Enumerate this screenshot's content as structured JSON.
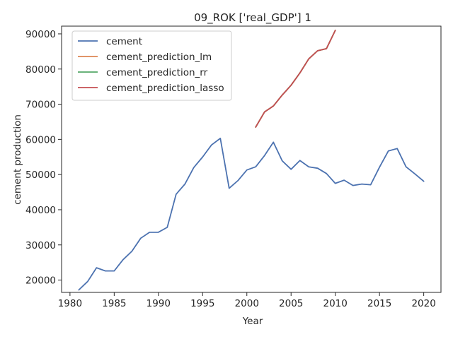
{
  "chart_data": {
    "type": "line",
    "title": "09_ROK ['real_GDP'] 1",
    "xlabel": "Year",
    "ylabel": "cement production",
    "xlim": [
      1978.05,
      1982.95
    ],
    "ylim": [
      16500,
      92200
    ],
    "xticks": [
      1980,
      1985,
      1990,
      1995,
      2000,
      2005,
      2010,
      2015,
      2020
    ],
    "yticks": [
      20000,
      30000,
      40000,
      50000,
      60000,
      70000,
      80000,
      90000
    ],
    "grid": false,
    "legend_position": "top-left",
    "series": [
      {
        "name": "cement",
        "color": "#4c72b0",
        "x": [
          1981,
          1982,
          1983,
          1984,
          1985,
          1986,
          1987,
          1988,
          1989,
          1990,
          1991,
          1992,
          1993,
          1994,
          1995,
          1996,
          1997,
          1998,
          1999,
          2000,
          2001,
          2002,
          2003,
          2004,
          2005,
          2006,
          2007,
          2008,
          2009,
          2010,
          2011,
          2012,
          2013,
          2014,
          2015,
          2016,
          2017,
          2018,
          2019,
          2020
        ],
        "y": [
          17200,
          19600,
          23500,
          22600,
          22600,
          25800,
          28200,
          31900,
          33600,
          33600,
          35000,
          44400,
          47300,
          52000,
          55000,
          58400,
          60300,
          46100,
          48300,
          51300,
          52200,
          55400,
          59200,
          53900,
          51500,
          54000,
          52200,
          51800,
          50300,
          47500,
          48400,
          46900,
          47300,
          47100,
          52100,
          56700,
          57400,
          52200,
          50200,
          48100
        ]
      },
      {
        "name": "cement_prediction_lm",
        "color": "#dd8452",
        "x": [
          2001,
          2002,
          2003,
          2004,
          2005,
          2006,
          2007,
          2008,
          2009,
          2010
        ],
        "y": [
          63500,
          67800,
          69500,
          72600,
          75400,
          78900,
          82900,
          85200,
          85800,
          91000
        ]
      },
      {
        "name": "cement_prediction_rr",
        "color": "#55a868",
        "x": [
          2001,
          2002,
          2003,
          2004,
          2005,
          2006,
          2007,
          2008,
          2009,
          2010
        ],
        "y": [
          63500,
          67800,
          69500,
          72600,
          75400,
          78900,
          82900,
          85200,
          85800,
          91000
        ]
      },
      {
        "name": "cement_prediction_lasso",
        "color": "#c44e52",
        "x": [
          2001,
          2002,
          2003,
          2004,
          2005,
          2006,
          2007,
          2008,
          2009,
          2010
        ],
        "y": [
          63500,
          67800,
          69500,
          72600,
          75400,
          78900,
          82900,
          85200,
          85800,
          91000
        ]
      }
    ]
  }
}
